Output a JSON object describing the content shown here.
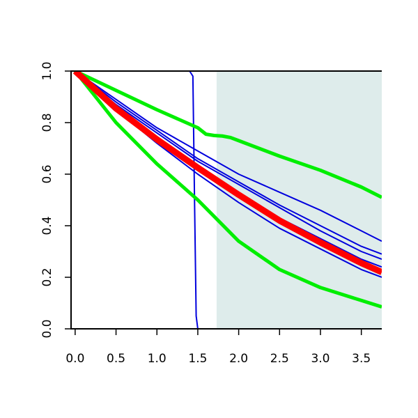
{
  "chart_data": {
    "type": "line",
    "title": "",
    "xlabel": "",
    "ylabel": "",
    "xlim": [
      -0.05,
      3.75
    ],
    "ylim": [
      0.0,
      1.0
    ],
    "x_ticks": [
      "0.0",
      "0.5",
      "1.0",
      "1.5",
      "2.0",
      "2.5",
      "3.0",
      "3.5"
    ],
    "x_tick_values": [
      0.0,
      0.5,
      1.0,
      1.5,
      2.0,
      2.5,
      3.0,
      3.5
    ],
    "y_ticks": [
      "0.0",
      "0.2",
      "0.4",
      "0.6",
      "0.8",
      "1.0"
    ],
    "y_tick_values": [
      0.0,
      0.2,
      0.4,
      0.6,
      0.8,
      1.0
    ],
    "grid": false,
    "legend": "none",
    "shaded_region": {
      "x_from": 1.73,
      "x_to": 3.75,
      "color": "#deeceb"
    },
    "series": [
      {
        "role": "blue-step",
        "color": "#0000dd",
        "width": 2,
        "x": [
          0.0,
          1.4,
          1.44,
          1.46,
          1.48,
          1.5,
          3.75
        ],
        "y": [
          1.0,
          1.0,
          0.98,
          0.5,
          0.05,
          0.0,
          0.0
        ]
      },
      {
        "role": "blue-curve",
        "color": "#0000dd",
        "width": 2,
        "x": [
          0.0,
          0.5,
          1.0,
          1.5,
          2.0,
          2.5,
          3.0,
          3.5,
          3.75
        ],
        "y": [
          1.0,
          0.89,
          0.78,
          0.69,
          0.6,
          0.53,
          0.46,
          0.38,
          0.34
        ]
      },
      {
        "role": "blue-curve",
        "color": "#0000dd",
        "width": 2,
        "x": [
          0.0,
          0.5,
          1.0,
          1.5,
          2.0,
          2.5,
          3.0,
          3.5,
          3.75
        ],
        "y": [
          1.0,
          0.88,
          0.77,
          0.66,
          0.57,
          0.48,
          0.4,
          0.32,
          0.29
        ]
      },
      {
        "role": "blue-curve",
        "color": "#0000dd",
        "width": 2,
        "x": [
          0.0,
          0.5,
          1.0,
          1.5,
          2.0,
          2.5,
          3.0,
          3.5,
          3.75
        ],
        "y": [
          1.0,
          0.87,
          0.76,
          0.65,
          0.56,
          0.47,
          0.38,
          0.3,
          0.27
        ]
      },
      {
        "role": "blue-curve",
        "color": "#0000dd",
        "width": 2,
        "x": [
          0.0,
          0.5,
          1.0,
          1.5,
          2.0,
          2.5,
          3.0,
          3.5,
          3.75
        ],
        "y": [
          1.0,
          0.86,
          0.74,
          0.63,
          0.53,
          0.43,
          0.35,
          0.27,
          0.24
        ]
      },
      {
        "role": "blue-curve",
        "color": "#0000dd",
        "width": 2,
        "x": [
          0.0,
          0.5,
          1.0,
          1.5,
          2.0,
          2.5,
          3.0,
          3.5,
          3.75
        ],
        "y": [
          1.0,
          0.85,
          0.72,
          0.6,
          0.49,
          0.39,
          0.31,
          0.23,
          0.2
        ]
      },
      {
        "role": "green-upper",
        "color": "#00ee00",
        "width": 5,
        "x": [
          0.0,
          0.5,
          1.0,
          1.5,
          1.6,
          1.7,
          1.8,
          1.9,
          2.0,
          2.5,
          3.0,
          3.5,
          3.75
        ],
        "y": [
          1.0,
          0.925,
          0.85,
          0.78,
          0.755,
          0.75,
          0.748,
          0.742,
          0.73,
          0.67,
          0.615,
          0.55,
          0.51
        ]
      },
      {
        "role": "green-lower",
        "color": "#00ee00",
        "width": 5,
        "x": [
          0.0,
          0.25,
          0.5,
          0.75,
          1.0,
          1.25,
          1.5,
          2.0,
          2.5,
          3.0,
          3.5,
          3.75
        ],
        "y": [
          1.0,
          0.9,
          0.8,
          0.72,
          0.64,
          0.57,
          0.5,
          0.34,
          0.23,
          0.16,
          0.11,
          0.085
        ]
      },
      {
        "role": "red-mean",
        "color": "#ff0000",
        "width": 9,
        "x": [
          0.0,
          0.5,
          1.0,
          1.5,
          2.0,
          2.5,
          3.0,
          3.5,
          3.75
        ],
        "y": [
          1.0,
          0.855,
          0.735,
          0.625,
          0.52,
          0.42,
          0.335,
          0.255,
          0.22
        ]
      }
    ]
  }
}
